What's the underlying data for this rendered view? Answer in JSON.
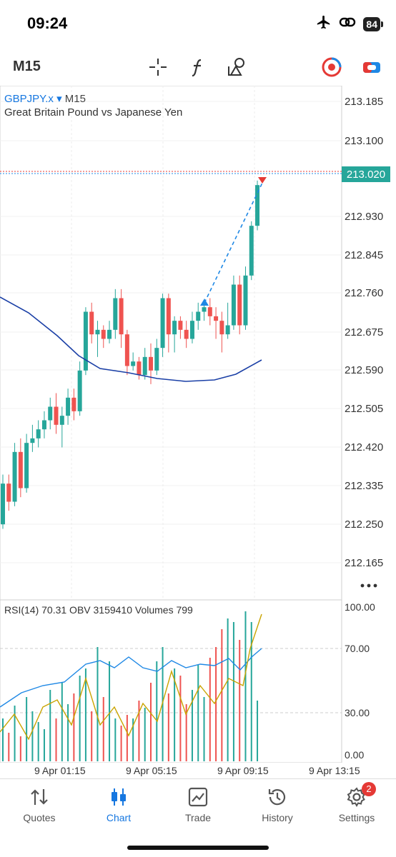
{
  "status_bar": {
    "time": "09:24",
    "battery": "84",
    "icons": [
      "airplane-icon",
      "link-icon",
      "battery-icon"
    ]
  },
  "toolbar": {
    "timeframe": "M15",
    "icons": [
      "crosshair-icon",
      "function-icon",
      "objects-icon",
      "trade-signal-icon",
      "account-icon"
    ]
  },
  "chart": {
    "symbol": "GBPJPY.x",
    "timeframe": "M15",
    "description": "Great Britain Pound vs Japanese Yen",
    "current_price": "213.020",
    "price_ticks": [
      "213.185",
      "213.100",
      "212.930",
      "212.845",
      "212.760",
      "212.675",
      "212.590",
      "212.505",
      "212.420",
      "212.335",
      "212.250",
      "212.165"
    ],
    "colors": {
      "bull": "#26a69a",
      "bear": "#ef5350",
      "ma": "#1a3fa6",
      "price_tag": "#26a69a"
    }
  },
  "indicators": {
    "legend": "RSI(14) 70.31 OBV 3159410 Volumes 799",
    "levels": [
      "100.00",
      "70.00",
      "30.00",
      "0.00"
    ],
    "colors": {
      "rsi": "#c9a400",
      "obv": "#1e88e5"
    }
  },
  "time_axis": [
    "9 Apr 01:15",
    "9 Apr 05:15",
    "9 Apr 09:15",
    "9 Apr 13:15"
  ],
  "tabs": [
    {
      "label": "Quotes",
      "icon": "quotes-icon",
      "active": false
    },
    {
      "label": "Chart",
      "icon": "chart-icon",
      "active": true
    },
    {
      "label": "Trade",
      "icon": "trade-icon",
      "active": false
    },
    {
      "label": "History",
      "icon": "history-icon",
      "active": false
    },
    {
      "label": "Settings",
      "icon": "settings-icon",
      "active": false,
      "badge": "2"
    }
  ]
}
